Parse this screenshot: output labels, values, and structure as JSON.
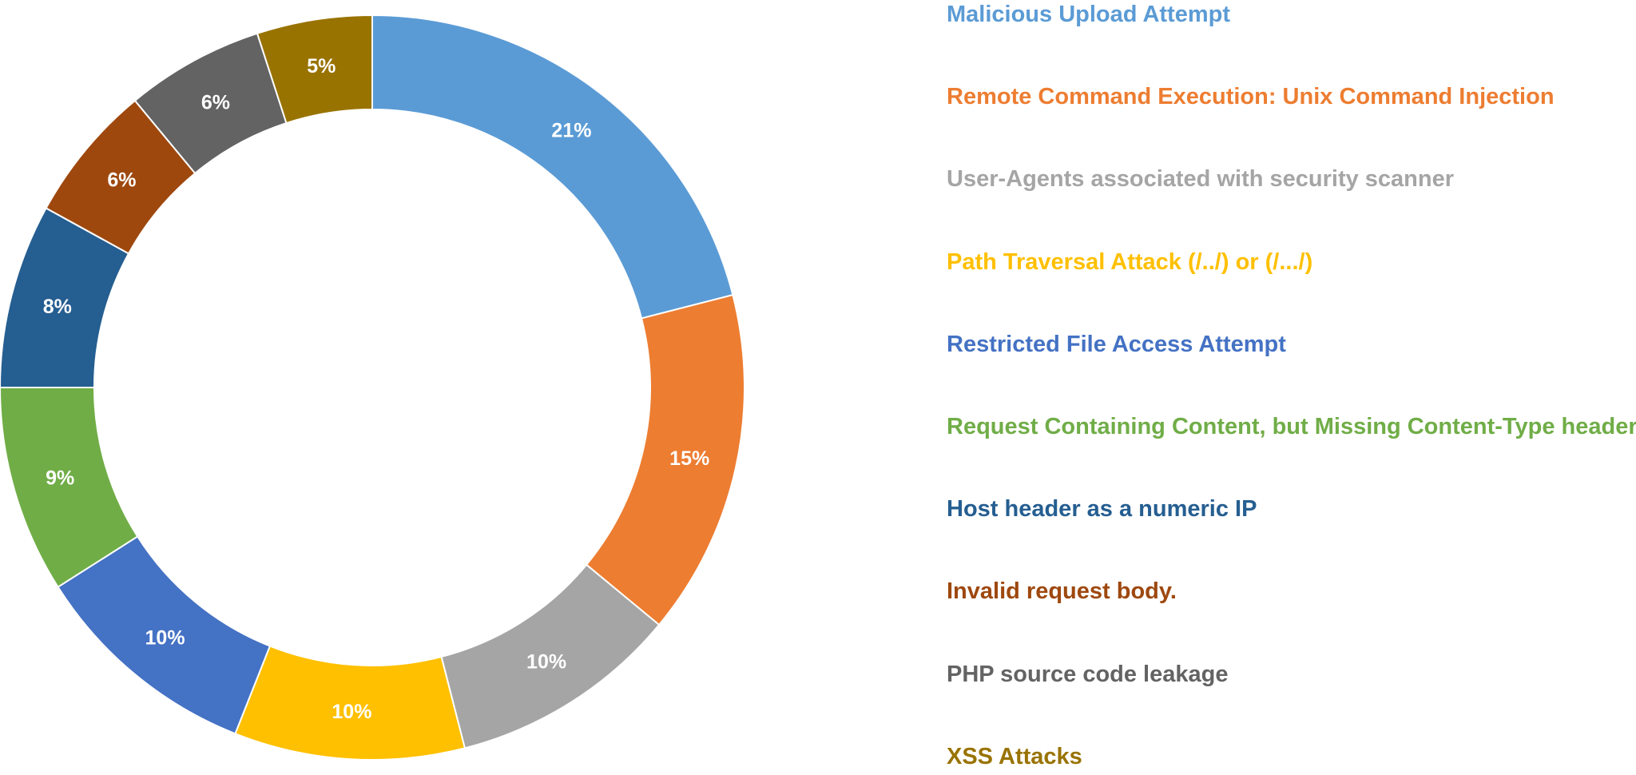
{
  "chart_data": {
    "type": "pie",
    "donut": true,
    "legend_position": "right",
    "slices": [
      {
        "name": "Malicious Upload Attempt",
        "value": 21,
        "label": "21%",
        "color": "#5B9BD5"
      },
      {
        "name": "Remote Command Execution: Unix Command Injection",
        "value": 15,
        "label": "15%",
        "color": "#ED7D31"
      },
      {
        "name": "User-Agents associated with security scanner",
        "value": 10,
        "label": "10%",
        "color": "#A5A5A5"
      },
      {
        "name": "Path Traversal Attack (/../) or (/.../)",
        "value": 10,
        "label": "10%",
        "color": "#FFC000"
      },
      {
        "name": "Restricted File Access Attempt",
        "value": 10,
        "label": "10%",
        "color": "#4472C4"
      },
      {
        "name": "Request Containing Content, but Missing Content-Type header",
        "value": 9,
        "label": "9%",
        "color": "#70AD47"
      },
      {
        "name": "Host header as a numeric IP",
        "value": 8,
        "label": "8%",
        "color": "#255E91"
      },
      {
        "name": "Invalid request body.",
        "value": 6,
        "label": "6%",
        "color": "#9E480E"
      },
      {
        "name": "PHP source code leakage",
        "value": 6,
        "label": "6%",
        "color": "#636363"
      },
      {
        "name": "XSS Attacks",
        "value": 5,
        "label": "5%",
        "color": "#997300"
      }
    ]
  }
}
